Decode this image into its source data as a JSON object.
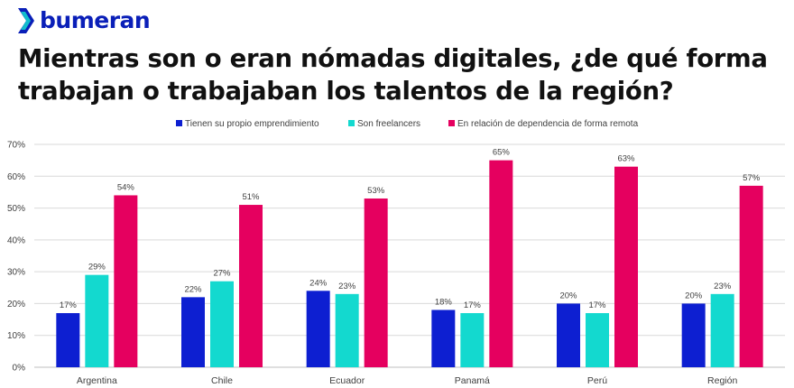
{
  "brand": {
    "name": "bumeran"
  },
  "page": {
    "title": "Mientras son o eran nómadas digitales, ¿de qué forma trabajan o trabajaban los talentos de la región?"
  },
  "colors": {
    "brand": "#0a1fb8",
    "text": "#404040",
    "grid": "#d9d9d9",
    "axis": "#bfbfbf"
  },
  "chart_data": {
    "type": "bar",
    "categories": [
      "Argentina",
      "Chile",
      "Ecuador",
      "Panamá",
      "Perú",
      "Región"
    ],
    "series": [
      {
        "name": "Tienen su propio emprendimiento",
        "color": "#0d1fd1",
        "values": [
          17,
          22,
          24,
          18,
          20,
          20
        ]
      },
      {
        "name": "Son freelancers",
        "color": "#13d9cf",
        "values": [
          29,
          27,
          23,
          17,
          17,
          23
        ]
      },
      {
        "name": "En relación de dependencia de forma remota",
        "color": "#e5005f",
        "values": [
          54,
          51,
          53,
          65,
          63,
          57
        ]
      }
    ],
    "ylim": [
      0,
      70
    ],
    "yticks": [
      "0%",
      "10%",
      "20%",
      "30%",
      "40%",
      "50%",
      "60%",
      "70%"
    ],
    "value_suffix": "%",
    "grid": true,
    "legend_position": "top"
  }
}
